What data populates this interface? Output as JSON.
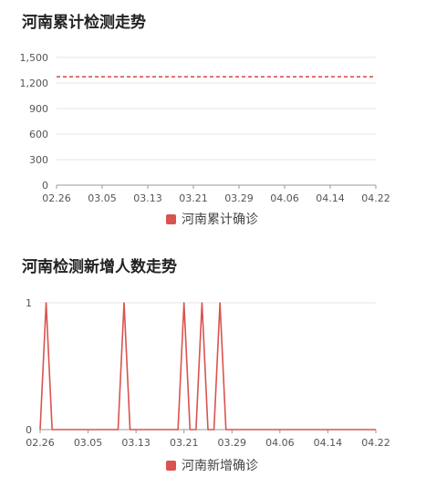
{
  "chart_data": [
    {
      "type": "line",
      "title": "河南累计检测走势",
      "xlabel": "",
      "ylabel": "",
      "x_ticks": [
        "02.26",
        "03.05",
        "03.13",
        "03.21",
        "03.29",
        "04.06",
        "04.14",
        "04.22"
      ],
      "y_ticks": [
        "1,500",
        "1,200",
        "900",
        "600",
        "300",
        "0"
      ],
      "ylim": [
        0,
        1500
      ],
      "grid": true,
      "legend_position": "bottom",
      "series": [
        {
          "name": "河南累计确诊",
          "color": "#d9534f",
          "style": "dashed",
          "values": [
            1273,
            1273,
            1273,
            1273,
            1273,
            1273,
            1273,
            1273,
            1273,
            1273,
            1273,
            1273,
            1273,
            1273,
            1273,
            1273,
            1273,
            1273,
            1273,
            1273,
            1273,
            1273,
            1273,
            1273,
            1273,
            1273,
            1273,
            1273,
            1273,
            1273,
            1273,
            1273,
            1273,
            1273,
            1273,
            1273,
            1273,
            1273,
            1273,
            1273,
            1273,
            1273,
            1273,
            1273,
            1273,
            1273,
            1273,
            1273,
            1273,
            1273,
            1273,
            1273,
            1273,
            1273,
            1273,
            1273,
            1273
          ]
        }
      ]
    },
    {
      "type": "line",
      "title": "河南检测新增人数走势",
      "xlabel": "",
      "ylabel": "",
      "x_ticks": [
        "02.26",
        "03.05",
        "03.13",
        "03.21",
        "03.29",
        "04.06",
        "04.14",
        "04.22"
      ],
      "y_ticks": [
        "1",
        "0"
      ],
      "ylim": [
        0,
        1
      ],
      "grid": true,
      "legend_position": "bottom",
      "series": [
        {
          "name": "河南新增确诊",
          "color": "#d9534f",
          "values": [
            0,
            1,
            0,
            0,
            0,
            0,
            0,
            0,
            0,
            0,
            0,
            0,
            0,
            0,
            1,
            0,
            0,
            0,
            0,
            0,
            0,
            0,
            0,
            0,
            1,
            0,
            0,
            1,
            0,
            0,
            1,
            0,
            0,
            0,
            0,
            0,
            0,
            0,
            0,
            0,
            0,
            0,
            0,
            0,
            0,
            0,
            0,
            0,
            0,
            0,
            0,
            0,
            0,
            0,
            0,
            0,
            0
          ]
        }
      ]
    }
  ]
}
